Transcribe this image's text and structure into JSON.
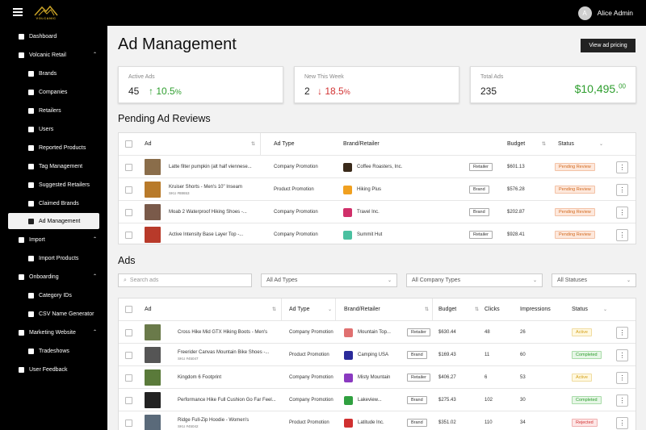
{
  "topbar": {
    "logo_text": "VOLCANIC",
    "user_initial": "A",
    "user_name": "Alice Admin"
  },
  "sidebar": {
    "items": [
      {
        "label": "Dashboard",
        "icon": "dashboard-icon"
      },
      {
        "label": "Volcanic Retail",
        "icon": "retail-icon"
      },
      {
        "label": "Brands",
        "icon": "brand-icon"
      },
      {
        "label": "Companies",
        "icon": "company-icon"
      },
      {
        "label": "Retailers",
        "icon": "retailer-icon"
      },
      {
        "label": "Users",
        "icon": "user-icon"
      },
      {
        "label": "Reported Products",
        "icon": "warning-icon"
      },
      {
        "label": "Tag Management",
        "icon": "tag-icon"
      },
      {
        "label": "Suggested Retailers",
        "icon": "suggest-icon"
      },
      {
        "label": "Claimed Brands",
        "icon": "shield-icon"
      },
      {
        "label": "Ad Management",
        "icon": "ad-icon"
      },
      {
        "label": "Import",
        "icon": "import-icon"
      },
      {
        "label": "Import Products",
        "icon": "import-products-icon"
      },
      {
        "label": "Onboarding",
        "icon": "onboarding-icon"
      },
      {
        "label": "Category IDs",
        "icon": "category-icon"
      },
      {
        "label": "CSV Name Generator",
        "icon": "csv-icon"
      },
      {
        "label": "Marketing Website",
        "icon": "globe-icon"
      },
      {
        "label": "Tradeshows",
        "icon": "calendar-icon"
      },
      {
        "label": "User Feedback",
        "icon": "feedback-icon"
      }
    ]
  },
  "main": {
    "title": "Ad Management",
    "pricing_button": "View ad pricing",
    "stats": [
      {
        "label": "Active Ads",
        "value": "45",
        "change": "10.5",
        "change_suffix": "%",
        "direction": "up"
      },
      {
        "label": "New This Week",
        "value": "2",
        "change": "18.5",
        "change_suffix": "%",
        "direction": "down"
      },
      {
        "label": "Total Ads",
        "value": "235",
        "money_main": "$10,495.",
        "money_cents": "00"
      }
    ],
    "pending": {
      "title": "Pending Ad Reviews",
      "columns": {
        "ad": "Ad",
        "type": "Ad Type",
        "brand": "Brand/Retailer",
        "budget": "Budget",
        "status": "Status"
      },
      "rows": [
        {
          "ad": "Latte filter pumpkin (alt half viennese...",
          "sku": "",
          "type": "Company Promotion",
          "brand": "Coffee Roasters, Inc.",
          "tag": "Retailer",
          "budget": "$601.13",
          "status": "Pending Review",
          "thumb_color": "#8a6d4a",
          "logo_color": "#3a2a1a"
        },
        {
          "ad": "Kruiser Shorts - Men's 10\" Inseam",
          "sku": "SKU #88653",
          "type": "Product Promotion",
          "brand": "Hiking Plus",
          "tag": "Brand",
          "budget": "$576.28",
          "status": "Pending Review",
          "thumb_color": "#b87a2a",
          "logo_color": "#f0a020"
        },
        {
          "ad": "Moab 2 Waterproof Hiking Shoes -...",
          "sku": "",
          "type": "Company Promotion",
          "brand": "Travel Inc.",
          "tag": "Brand",
          "budget": "$202.87",
          "status": "Pending Review",
          "thumb_color": "#7a5a4a",
          "logo_color": "#d0306a"
        },
        {
          "ad": "Active Intensity Base Layer Top -...",
          "sku": "",
          "type": "Company Promotion",
          "brand": "Summit Hut",
          "tag": "Retailer",
          "budget": "$928.41",
          "status": "Pending Review",
          "thumb_color": "#b83a2a",
          "logo_color": "#4ac0a0"
        }
      ]
    },
    "ads": {
      "title": "Ads",
      "search_placeholder": "Search ads",
      "filter_type": "All Ad Types",
      "filter_company": "All Company Types",
      "filter_status": "All Statuses",
      "columns": {
        "ad": "Ad",
        "type": "Ad Type",
        "brand": "Brand/Retailer",
        "budget": "Budget",
        "clicks": "Clicks",
        "impressions": "Impressions",
        "status": "Status"
      },
      "rows": [
        {
          "ad": "Cross Hike Mid GTX Hiking Boots - Men's",
          "sku": "",
          "type": "Company Promotion",
          "brand": "Mountain Top...",
          "tag": "Retailer",
          "budget": "$630.44",
          "clicks": "48",
          "impressions": "26",
          "status": "Active",
          "thumb_color": "#6a7a4a",
          "logo_color": "#e07070"
        },
        {
          "ad": "Freerider Canvas Mountain Bike Shoes -...",
          "sku": "SKU #45047",
          "type": "Product Promotion",
          "brand": "Camping USA",
          "tag": "Brand",
          "budget": "$169.43",
          "clicks": "11",
          "impressions": "60",
          "status": "Completed",
          "thumb_color": "#555555",
          "logo_color": "#2a2a9a"
        },
        {
          "ad": "Kingdom 6 Footprint",
          "sku": "",
          "type": "Company Promotion",
          "brand": "Misty Mountain",
          "tag": "Retailer",
          "budget": "$406.27",
          "clicks": "6",
          "impressions": "53",
          "status": "Active",
          "thumb_color": "#5a7a3a",
          "logo_color": "#8a3ac0"
        },
        {
          "ad": "Performance Hike Full Cushion Go Far Feel...",
          "sku": "",
          "type": "Company Promotion",
          "brand": "Lakeview...",
          "tag": "Brand",
          "budget": "$275.43",
          "clicks": "102",
          "impressions": "30",
          "status": "Completed",
          "thumb_color": "#222222",
          "logo_color": "#30a040"
        },
        {
          "ad": "Ridge Full-Zip Hoodie - Women's",
          "sku": "SKU #45042",
          "type": "Product Promotion",
          "brand": "Latitude Inc.",
          "tag": "Brand",
          "budget": "$351.02",
          "clicks": "110",
          "impressions": "34",
          "status": "Rejected",
          "thumb_color": "#5a6a7a",
          "logo_color": "#d03030"
        }
      ]
    }
  }
}
